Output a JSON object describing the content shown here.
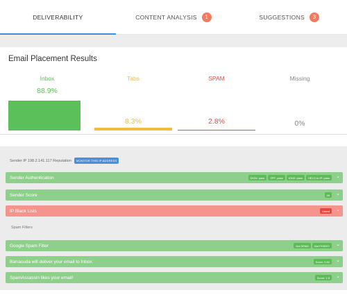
{
  "tabs": [
    {
      "label": "DELIVERABILITY",
      "badge": ""
    },
    {
      "label": "CONTENT ANALYSIS",
      "badge": "1"
    },
    {
      "label": "SUGGESTIONS",
      "badge": "3"
    }
  ],
  "placement": {
    "title": "Email Placement Results",
    "columns": [
      {
        "label": "Inbox",
        "value": "88.9%",
        "fraction": 0.889,
        "color": "#5cc05a"
      },
      {
        "label": "Tabs",
        "value": "8.3%",
        "fraction": 0.083,
        "color": "#f5b93b"
      },
      {
        "label": "SPAM",
        "value": "2.8%",
        "fraction": 0.028,
        "color": "#e14b44"
      },
      {
        "label": "Missing",
        "value": "0%",
        "fraction": 0.0,
        "color": "#888888"
      }
    ]
  },
  "report": {
    "reputation_text": "Sender IP 198.2.141.117 Reputation",
    "monitor_label": "MONITOR THIS IP ADDRESS",
    "rows": [
      {
        "label": "Sender Authentication",
        "status": "green",
        "tags": [
          "DKIM: pass",
          "SPF: pass",
          "rDNS: pass",
          "HELO to IP: pass"
        ]
      },
      {
        "label": "Sender Score",
        "status": "green",
        "tags": [
          "99"
        ]
      },
      {
        "label": "IP Black Lists",
        "status": "red",
        "tags": [
          "Listed"
        ]
      }
    ],
    "spam_filters_label": "Spam Filters",
    "filters": [
      {
        "label": "Google Spam Filter",
        "status": "green",
        "tags": [
          "Not SPAM",
          "Not PHISHY"
        ]
      },
      {
        "label": "Barracuda will deliver your email to Inbox.",
        "status": "green",
        "tags": [
          "Score: 0.82"
        ]
      },
      {
        "label": "SpamAssassin likes your email!",
        "status": "green",
        "tags": [
          "Score: 1.8"
        ]
      }
    ]
  }
}
